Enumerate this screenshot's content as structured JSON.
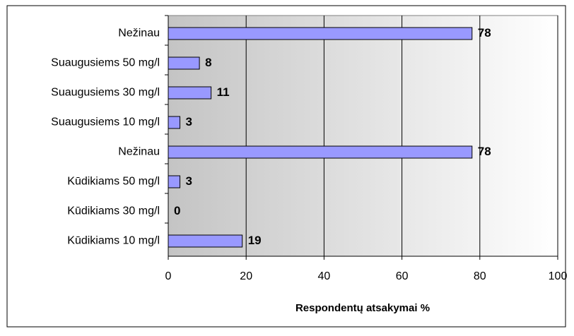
{
  "chart_data": {
    "type": "hbar",
    "x_label": "Respondentų atsakymai %",
    "categories": [
      "Nežinau",
      "Suaugusiems 50 mg/l",
      "Suaugusiems 30 mg/l",
      "Suaugusiems 10 mg/l",
      "Nežinau",
      "Kūdikiams 50 mg/l",
      "Kūdikiams 30 mg/l",
      "Kūdikiams 10 mg/l"
    ],
    "values": [
      78,
      8,
      11,
      3,
      78,
      3,
      0,
      19
    ],
    "color": "#9999ff",
    "xlim": [
      0,
      100
    ],
    "xticks": [
      0,
      20,
      40,
      60,
      80,
      100
    ],
    "grid": true
  }
}
